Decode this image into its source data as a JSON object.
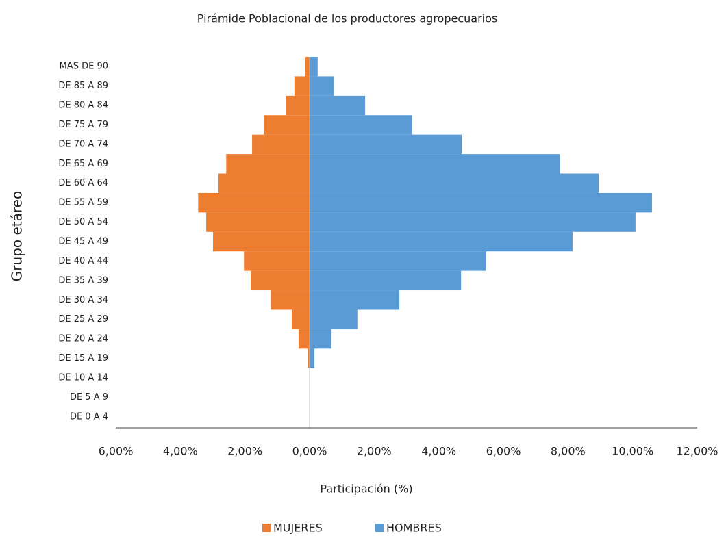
{
  "chart_data": {
    "type": "bar",
    "orientation": "horizontal",
    "title": "Pirámide Poblacional de los productores agropecuarios",
    "x_label": "Participación (%)",
    "y_label": "Grupo etáreo",
    "categories": [
      "DE 0 A 4",
      "DE 5 A 9",
      "DE 10 A 14",
      "DE 15 A 19",
      "DE 20 A 24",
      "DE 25 A 29",
      "DE 30 A 34",
      "DE 35 A 39",
      "DE 40 A 44",
      "DE 45 A 49",
      "DE 50 A 54",
      "DE 55 A 59",
      "DE 60 A 64",
      "DE 65 A 69",
      "DE 70 A 74",
      "DE 75 A 79",
      "DE 80 A 84",
      "DE 85 A 89",
      "MAS DE 90"
    ],
    "series": [
      {
        "name": "MUJERES",
        "color": "#ED7D31",
        "values": [
          0,
          0,
          0,
          -0.06,
          -0.34,
          -0.55,
          -1.21,
          -1.82,
          -2.03,
          -2.99,
          -3.2,
          -3.45,
          -2.82,
          -2.58,
          -1.78,
          -1.42,
          -0.72,
          -0.47,
          -0.13
        ]
      },
      {
        "name": "HOMBRES",
        "color": "#5B9BD5",
        "values": [
          0,
          0,
          0,
          0.15,
          0.68,
          1.48,
          2.78,
          4.69,
          5.47,
          8.14,
          10.09,
          10.6,
          8.95,
          7.76,
          4.71,
          3.18,
          1.72,
          0.76,
          0.25
        ]
      }
    ],
    "xlim": [
      -6,
      12
    ],
    "xticks": [
      {
        "value": -6,
        "label": "6,00%"
      },
      {
        "value": -4,
        "label": "4,00%"
      },
      {
        "value": -2,
        "label": "2,00%"
      },
      {
        "value": 0,
        "label": "0,00%"
      },
      {
        "value": 2,
        "label": "2,00%"
      },
      {
        "value": 4,
        "label": "4,00%"
      },
      {
        "value": 6,
        "label": "6,00%"
      },
      {
        "value": 8,
        "label": "8,00%"
      },
      {
        "value": 10,
        "label": "10,00%"
      },
      {
        "value": 12,
        "label": "12,00%"
      }
    ],
    "grid": false,
    "legend": "bottom"
  }
}
